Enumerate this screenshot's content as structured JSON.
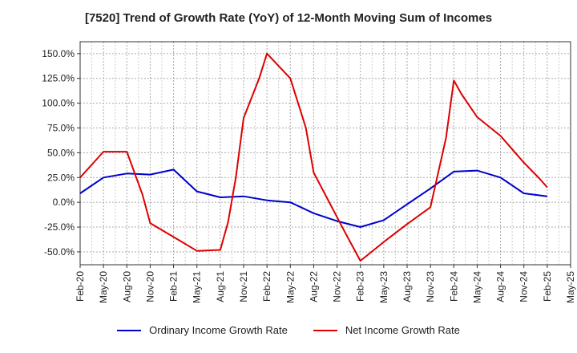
{
  "chart_data": {
    "type": "line",
    "title": "[7520]  Trend of Growth Rate (YoY) of 12-Month Moving Sum of Incomes",
    "xlabel": "",
    "ylabel": "",
    "x_tick_labels": [
      "Feb-20",
      "May-20",
      "Aug-20",
      "Nov-20",
      "Feb-21",
      "May-21",
      "Aug-21",
      "Nov-21",
      "Feb-22",
      "May-22",
      "Aug-22",
      "Nov-22",
      "Feb-23",
      "May-23",
      "Aug-23",
      "Nov-23",
      "Feb-24",
      "May-24",
      "Aug-24",
      "Nov-24",
      "Feb-25",
      "May-25"
    ],
    "y_tick_labels": [
      "150.0%",
      "125.0%",
      "100.0%",
      "75.0%",
      "50.0%",
      "25.0%",
      "0.0%",
      "-25.0%",
      "-50.0%"
    ],
    "y_ticks": [
      150,
      125,
      100,
      75,
      50,
      25,
      0,
      -25,
      -50
    ],
    "ylim": [
      -63,
      162
    ],
    "grid": true,
    "legend_position": "bottom",
    "series": [
      {
        "name": "Ordinary Income Growth Rate",
        "color": "#0000cc",
        "points": [
          [
            "Feb-20",
            9
          ],
          [
            "May-20",
            25
          ],
          [
            "Aug-20",
            29
          ],
          [
            "Nov-20",
            28
          ],
          [
            "Feb-21",
            33
          ],
          [
            "May-21",
            11
          ],
          [
            "Aug-21",
            5
          ],
          [
            "Nov-21",
            6
          ],
          [
            "Feb-22",
            2
          ],
          [
            "May-22",
            0
          ],
          [
            "Aug-22",
            -11
          ],
          [
            "Nov-22",
            -19
          ],
          [
            "Feb-23",
            -25
          ],
          [
            "May-23",
            -18
          ],
          [
            "Aug-23",
            -2
          ],
          [
            "Nov-23",
            14
          ],
          [
            "Feb-24",
            31
          ],
          [
            "May-24",
            32
          ],
          [
            "Aug-24",
            25
          ],
          [
            "Nov-24",
            9
          ],
          [
            "Feb-25",
            6
          ]
        ]
      },
      {
        "name": "Net Income Growth Rate",
        "color": "#dd0000",
        "points": [
          [
            "Feb-20",
            25
          ],
          [
            "May-20",
            51
          ],
          [
            "Aug-20",
            51
          ],
          [
            "Oct-20",
            8
          ],
          [
            "Nov-20",
            -21
          ],
          [
            "Feb-21",
            -35
          ],
          [
            "May-21",
            -49
          ],
          [
            "Aug-21",
            -48
          ],
          [
            "Sep-21",
            -20
          ],
          [
            "Oct-21",
            25
          ],
          [
            "Nov-21",
            85
          ],
          [
            "Jan-22",
            125
          ],
          [
            "Feb-22",
            150
          ],
          [
            "May-22",
            125
          ],
          [
            "Jul-22",
            75
          ],
          [
            "Aug-22",
            30
          ],
          [
            "Oct-22",
            0
          ],
          [
            "Dec-22",
            -30
          ],
          [
            "Feb-23",
            -59
          ],
          [
            "May-23",
            -40
          ],
          [
            "Aug-23",
            -22
          ],
          [
            "Nov-23",
            -5
          ],
          [
            "Jan-24",
            65
          ],
          [
            "Feb-24",
            123
          ],
          [
            "Mar-24",
            109
          ],
          [
            "May-24",
            86
          ],
          [
            "Aug-24",
            67
          ],
          [
            "Nov-24",
            40
          ],
          [
            "Jan-25",
            24
          ],
          [
            "Feb-25",
            15
          ]
        ]
      }
    ]
  }
}
